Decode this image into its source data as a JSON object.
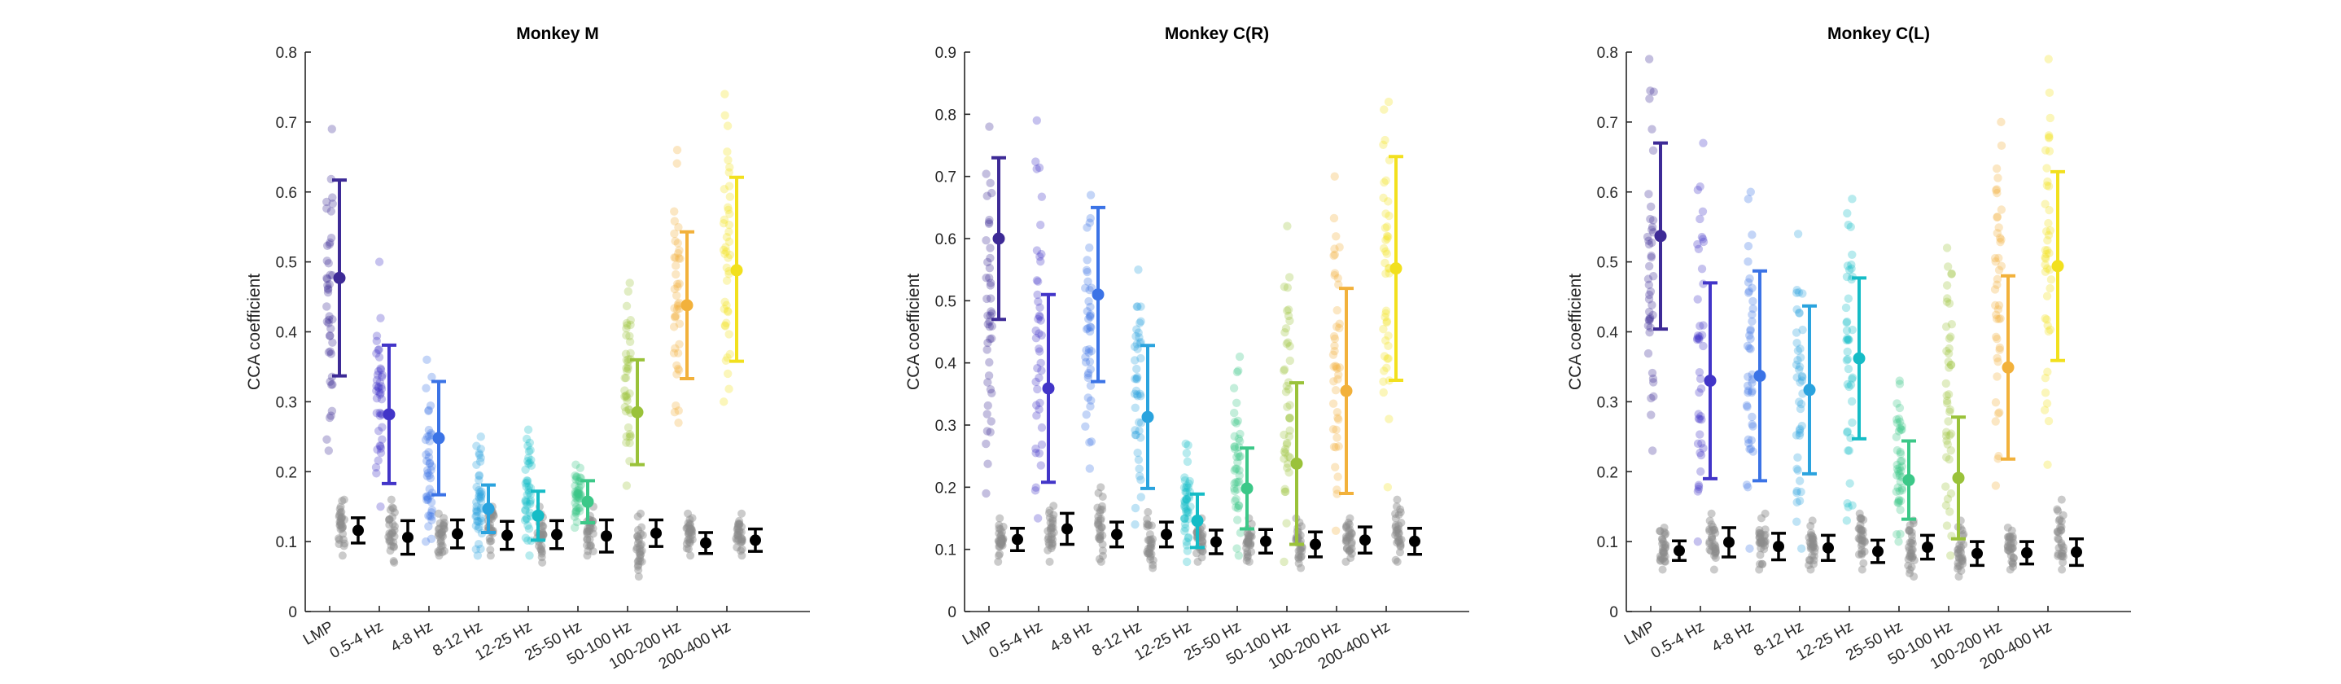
{
  "chart_data": [
    {
      "type": "scatter",
      "title": "Monkey M",
      "ylabel": "CCA coefficient",
      "ylim": [
        0,
        0.8
      ],
      "yticks": [
        0,
        0.1,
        0.2,
        0.3,
        0.4,
        0.5,
        0.6,
        0.7,
        0.8
      ],
      "categories": [
        "LMP",
        "0.5-4 Hz",
        "4-8 Hz",
        "8-12 Hz",
        "12-25 Hz",
        "25-50 Hz",
        "50-100 Hz",
        "100-200 Hz",
        "200-400 Hz"
      ],
      "series": [
        {
          "kind": "data",
          "mean": [
            0.477,
            0.282,
            0.248,
            0.147,
            0.137,
            0.157,
            0.285,
            0.438,
            0.488
          ],
          "err_low": [
            0.337,
            0.183,
            0.167,
            0.113,
            0.102,
            0.127,
            0.21,
            0.333,
            0.358
          ],
          "err_high": [
            0.617,
            0.381,
            0.329,
            0.181,
            0.172,
            0.187,
            0.36,
            0.543,
            0.621
          ],
          "point_min": [
            0.23,
            0.15,
            0.1,
            0.08,
            0.08,
            0.12,
            0.18,
            0.27,
            0.3
          ],
          "point_max": [
            0.69,
            0.5,
            0.36,
            0.25,
            0.26,
            0.21,
            0.47,
            0.66,
            0.74
          ]
        },
        {
          "kind": "shuffled",
          "mean": [
            0.116,
            0.106,
            0.111,
            0.109,
            0.11,
            0.108,
            0.112,
            0.098,
            0.102
          ],
          "err_low": [
            0.098,
            0.082,
            0.091,
            0.089,
            0.09,
            0.085,
            0.093,
            0.083,
            0.086
          ],
          "err_high": [
            0.134,
            0.13,
            0.131,
            0.129,
            0.13,
            0.131,
            0.131,
            0.113,
            0.118
          ],
          "point_min": [
            0.08,
            0.07,
            0.08,
            0.08,
            0.07,
            0.08,
            0.05,
            0.08,
            0.08
          ],
          "point_max": [
            0.16,
            0.16,
            0.14,
            0.15,
            0.15,
            0.15,
            0.14,
            0.14,
            0.14
          ]
        }
      ]
    },
    {
      "type": "scatter",
      "title": "Monkey C(R)",
      "ylabel": "CCA coefficient",
      "ylim": [
        0,
        0.9
      ],
      "yticks": [
        0,
        0.1,
        0.2,
        0.3,
        0.4,
        0.5,
        0.6,
        0.7,
        0.8,
        0.9
      ],
      "categories": [
        "LMP",
        "0.5-4 Hz",
        "4-8 Hz",
        "8-12 Hz",
        "12-25 Hz",
        "25-50 Hz",
        "50-100 Hz",
        "100-200 Hz",
        "200-400 Hz"
      ],
      "series": [
        {
          "kind": "data",
          "mean": [
            0.6,
            0.359,
            0.51,
            0.313,
            0.146,
            0.198,
            0.238,
            0.355,
            0.552
          ],
          "err_low": [
            0.47,
            0.208,
            0.37,
            0.198,
            0.103,
            0.133,
            0.108,
            0.19,
            0.372
          ],
          "err_high": [
            0.73,
            0.51,
            0.65,
            0.428,
            0.189,
            0.263,
            0.368,
            0.52,
            0.732
          ],
          "point_min": [
            0.19,
            0.15,
            0.23,
            0.14,
            0.08,
            0.09,
            0.08,
            0.13,
            0.2
          ],
          "point_max": [
            0.78,
            0.79,
            0.67,
            0.55,
            0.27,
            0.41,
            0.62,
            0.7,
            0.82
          ]
        },
        {
          "kind": "shuffled",
          "mean": [
            0.116,
            0.133,
            0.124,
            0.124,
            0.112,
            0.113,
            0.108,
            0.115,
            0.113
          ],
          "err_low": [
            0.098,
            0.108,
            0.104,
            0.104,
            0.093,
            0.094,
            0.088,
            0.094,
            0.092
          ],
          "err_high": [
            0.134,
            0.158,
            0.144,
            0.144,
            0.131,
            0.132,
            0.128,
            0.136,
            0.134
          ],
          "point_min": [
            0.08,
            0.08,
            0.08,
            0.07,
            0.08,
            0.08,
            0.07,
            0.08,
            0.08
          ],
          "point_max": [
            0.15,
            0.17,
            0.2,
            0.16,
            0.15,
            0.15,
            0.15,
            0.15,
            0.18
          ]
        }
      ]
    },
    {
      "type": "scatter",
      "title": "Monkey C(L)",
      "ylabel": "CCA coefficient",
      "ylim": [
        0,
        0.8
      ],
      "yticks": [
        0,
        0.1,
        0.2,
        0.3,
        0.4,
        0.5,
        0.6,
        0.7,
        0.8
      ],
      "categories": [
        "LMP",
        "0.5-4 Hz",
        "4-8 Hz",
        "8-12 Hz",
        "12-25 Hz",
        "25-50 Hz",
        "50-100 Hz",
        "100-200 Hz",
        "200-400 Hz"
      ],
      "series": [
        {
          "kind": "data",
          "mean": [
            0.537,
            0.33,
            0.337,
            0.317,
            0.362,
            0.188,
            0.191,
            0.349,
            0.494
          ],
          "err_low": [
            0.404,
            0.19,
            0.187,
            0.197,
            0.247,
            0.132,
            0.104,
            0.218,
            0.359
          ],
          "err_high": [
            0.67,
            0.47,
            0.487,
            0.437,
            0.477,
            0.244,
            0.278,
            0.48,
            0.629
          ],
          "point_min": [
            0.23,
            0.1,
            0.09,
            0.09,
            0.13,
            0.1,
            0.08,
            0.18,
            0.21
          ],
          "point_max": [
            0.79,
            0.67,
            0.6,
            0.54,
            0.59,
            0.33,
            0.52,
            0.7,
            0.79
          ]
        },
        {
          "kind": "shuffled",
          "mean": [
            0.087,
            0.099,
            0.093,
            0.091,
            0.086,
            0.092,
            0.083,
            0.084,
            0.085
          ],
          "err_low": [
            0.073,
            0.078,
            0.074,
            0.073,
            0.07,
            0.075,
            0.066,
            0.068,
            0.066
          ],
          "err_high": [
            0.101,
            0.12,
            0.112,
            0.109,
            0.102,
            0.109,
            0.1,
            0.1,
            0.104
          ],
          "point_min": [
            0.06,
            0.06,
            0.06,
            0.06,
            0.06,
            0.05,
            0.05,
            0.06,
            0.06
          ],
          "point_max": [
            0.12,
            0.14,
            0.14,
            0.13,
            0.14,
            0.13,
            0.13,
            0.12,
            0.16
          ]
        }
      ]
    }
  ],
  "colors": {
    "bands": [
      "#3d2a96",
      "#4235c8",
      "#3b73e6",
      "#2aa3de",
      "#15bcc6",
      "#3cc888",
      "#9ac23a",
      "#f2b13b",
      "#f2e01e"
    ],
    "shuffled": "#000000",
    "shuffled_points": "#8c8c8c",
    "axis": "#262626"
  }
}
